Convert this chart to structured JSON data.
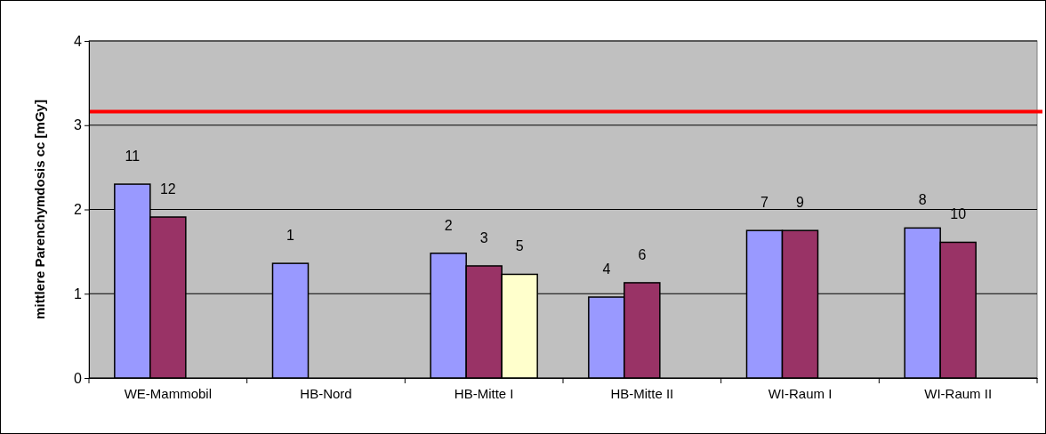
{
  "chart_data": {
    "type": "bar",
    "ylabel": "mittlere Parenchymdosis cc [mGy]",
    "categories": [
      "WE-Mammobil",
      "HB-Nord",
      "HB-Mitte I",
      "HB-Mitte II",
      "WI-Raum I",
      "WI-Raum II"
    ],
    "series": [
      {
        "color": "#9999ff",
        "values": [
          2.3,
          1.36,
          1.48,
          0.96,
          1.75,
          1.78
        ]
      },
      {
        "color": "#993366",
        "values": [
          1.91,
          null,
          1.33,
          1.13,
          1.75,
          1.61
        ]
      },
      {
        "color": "#ffffcc",
        "values": [
          null,
          null,
          1.23,
          null,
          null,
          null
        ]
      }
    ],
    "annotations": [
      "11",
      "12",
      "1",
      "2",
      "3",
      "5",
      "4",
      "6",
      "7",
      "9",
      "8",
      "10"
    ],
    "ylim": [
      0,
      4
    ],
    "yticks": [
      0,
      1,
      2,
      3,
      4
    ],
    "grid": "y",
    "ref_lines": [
      {
        "axis": "y",
        "value": 3.16,
        "color": "#ff0000"
      }
    ]
  }
}
